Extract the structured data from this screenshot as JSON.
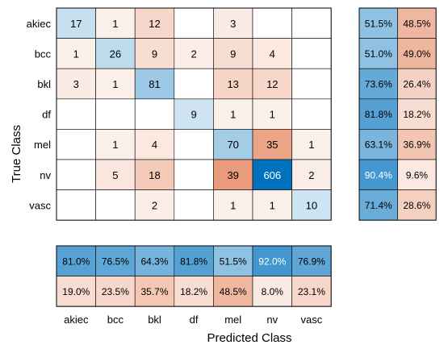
{
  "chart_data": {
    "type": "heatmap",
    "xlabel": "Predicted Class",
    "ylabel": "True Class",
    "classes": [
      "akiec",
      "bcc",
      "bkl",
      "df",
      "mel",
      "nv",
      "vasc"
    ],
    "matrix": [
      [
        17,
        1,
        12,
        null,
        3,
        null,
        null
      ],
      [
        1,
        26,
        9,
        2,
        9,
        4,
        null
      ],
      [
        3,
        1,
        81,
        null,
        13,
        12,
        null
      ],
      [
        null,
        null,
        null,
        9,
        1,
        1,
        null
      ],
      [
        null,
        1,
        4,
        null,
        70,
        35,
        1
      ],
      [
        null,
        5,
        18,
        null,
        39,
        606,
        2
      ],
      [
        null,
        null,
        2,
        null,
        1,
        1,
        10
      ]
    ],
    "row_summary": [
      [
        "51.5%",
        "48.5%"
      ],
      [
        "51.0%",
        "49.0%"
      ],
      [
        "73.6%",
        "26.4%"
      ],
      [
        "81.8%",
        "18.2%"
      ],
      [
        "63.1%",
        "36.9%"
      ],
      [
        "90.4%",
        "9.6%"
      ],
      [
        "71.4%",
        "28.6%"
      ]
    ],
    "col_summary": {
      "correct": [
        "81.0%",
        "76.5%",
        "64.3%",
        "81.8%",
        "51.5%",
        "92.0%",
        "76.9%"
      ],
      "incorrect": [
        "19.0%",
        "23.5%",
        "35.7%",
        "18.2%",
        "48.5%",
        "8.0%",
        "23.1%"
      ]
    },
    "colors": {
      "correct_max": "#0072bd",
      "incorrect_max": "#d95319",
      "grid": "#000000",
      "background": "#ffffff"
    }
  }
}
